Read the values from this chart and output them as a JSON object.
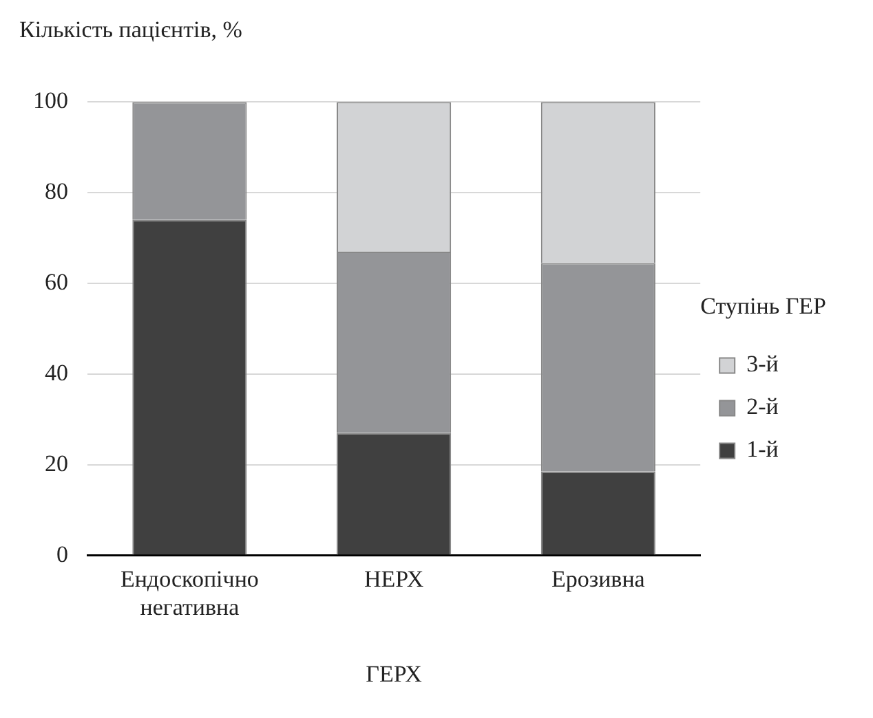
{
  "chart_data": {
    "type": "bar",
    "stacked": true,
    "ylabel": "Кількість пацієнтів, %",
    "xlabel": "ГЕРХ",
    "legend_title": "Ступінь ГЕР",
    "categories": [
      "Ендоскопічно негативна",
      "НЕРХ",
      "Ерозивна"
    ],
    "series": [
      {
        "name": "1-й",
        "color": "#404040",
        "values": [
          74,
          27,
          18.5
        ]
      },
      {
        "name": "2-й",
        "color": "#949598",
        "values": [
          26,
          40,
          46
        ]
      },
      {
        "name": "3-й",
        "color": "#d2d3d5",
        "values": [
          null,
          33,
          35.5
        ]
      }
    ],
    "ylim": [
      0,
      100
    ],
    "yticks": [
      0,
      20,
      40,
      60,
      80,
      100
    ],
    "grid": "y",
    "legend": "right"
  }
}
